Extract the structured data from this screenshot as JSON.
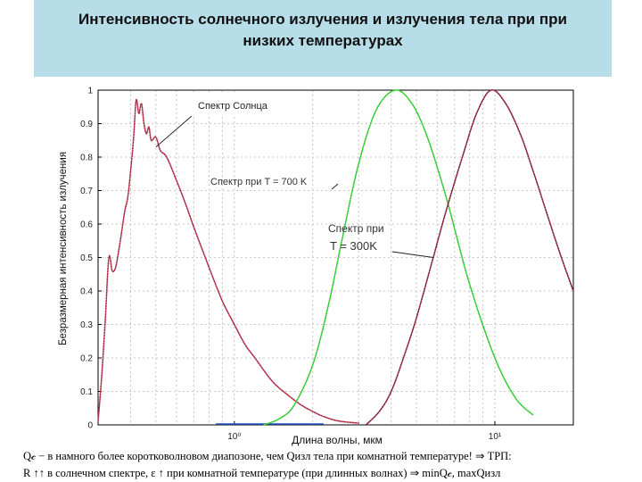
{
  "slide": {
    "title": "Интенсивность солнечного излучения и излучения тела при при низких температурах",
    "footer_line1": "Q𝒸 − в намного более коротковолновом диапозоне, чем Qизл тела при комнатной температуре! ⇒ ТРП:",
    "footer_line2": "R ↑↑ в солнечном спектре, ε ↑ при комнатной температуре (при длинных волнах) ⇒ minQ𝒸, maxQизл"
  },
  "colors": {
    "title_bg": "#b7dde8",
    "sun": "#b0304a",
    "t700": "#33cc33",
    "t300": "#8a2238",
    "baseline": "#2255cc",
    "grid": "#b8b8b8"
  },
  "chart_data": {
    "type": "line",
    "title": "",
    "xlabel": "Длина волны, мкм",
    "ylabel": "Безразмерная интенсивность излучения",
    "xscale": "log",
    "xlim": [
      0.3,
      20
    ],
    "ylim": [
      0,
      1
    ],
    "x_ticks": [
      {
        "value": 1,
        "label": "10⁰"
      },
      {
        "value": 10,
        "label": "10¹"
      }
    ],
    "y_ticks": [
      0,
      0.1,
      0.2,
      0.3,
      0.4,
      0.5,
      0.6,
      0.7,
      0.8,
      0.9,
      1
    ],
    "grid": true,
    "annotations": [
      {
        "text": "Спектр Солнца",
        "target_x": 0.5,
        "target_y": 0.83
      },
      {
        "text": "Спектр при T = 700 K",
        "target_x": 2.5,
        "target_y": 0.72
      },
      {
        "text": "Спектр при",
        "target_x": 5.8,
        "target_y": 0.5
      },
      {
        "text": "T = 300K",
        "target_x": 5.8,
        "target_y": 0.5
      }
    ],
    "series": [
      {
        "color": "#b0304a",
        "style": "dotted",
        "x": [
          0.3,
          0.31,
          0.32,
          0.33,
          0.34,
          0.35,
          0.36,
          0.37,
          0.38,
          0.39,
          0.4,
          0.41,
          0.42,
          0.43,
          0.44,
          0.45,
          0.46,
          0.47,
          0.48,
          0.5,
          0.52,
          0.55,
          0.6,
          0.65,
          0.7,
          0.8,
          0.9,
          1.0,
          1.1,
          1.2,
          1.4,
          1.6,
          1.8,
          2.0,
          2.2,
          2.5,
          3.0
        ],
        "y": [
          0.01,
          0.15,
          0.32,
          0.5,
          0.46,
          0.47,
          0.52,
          0.58,
          0.64,
          0.68,
          0.76,
          0.85,
          0.97,
          0.93,
          0.96,
          0.9,
          0.87,
          0.89,
          0.85,
          0.86,
          0.82,
          0.8,
          0.73,
          0.66,
          0.59,
          0.47,
          0.37,
          0.3,
          0.24,
          0.2,
          0.13,
          0.09,
          0.06,
          0.04,
          0.025,
          0.012,
          0.005
        ]
      },
      {
        "color": "#33cc33",
        "style": "dotted",
        "x": [
          1.3,
          1.5,
          1.7,
          2.0,
          2.3,
          2.6,
          3.0,
          3.5,
          4.14,
          4.8,
          5.5,
          6.5,
          8.0,
          10.0,
          12.0,
          14.0
        ],
        "y": [
          0.0,
          0.02,
          0.06,
          0.18,
          0.36,
          0.56,
          0.78,
          0.94,
          1.0,
          0.96,
          0.86,
          0.68,
          0.42,
          0.2,
          0.08,
          0.03
        ]
      },
      {
        "color": "#8a2238",
        "style": "dotted",
        "x": [
          3.2,
          3.6,
          4.0,
          4.5,
          5.0,
          5.8,
          6.5,
          7.5,
          8.5,
          9.66,
          11.0,
          12.5,
          14.0,
          16.0,
          18.0,
          20.0
        ],
        "y": [
          0.0,
          0.04,
          0.1,
          0.21,
          0.32,
          0.5,
          0.64,
          0.8,
          0.93,
          1.0,
          0.96,
          0.87,
          0.76,
          0.62,
          0.5,
          0.4
        ]
      }
    ]
  }
}
